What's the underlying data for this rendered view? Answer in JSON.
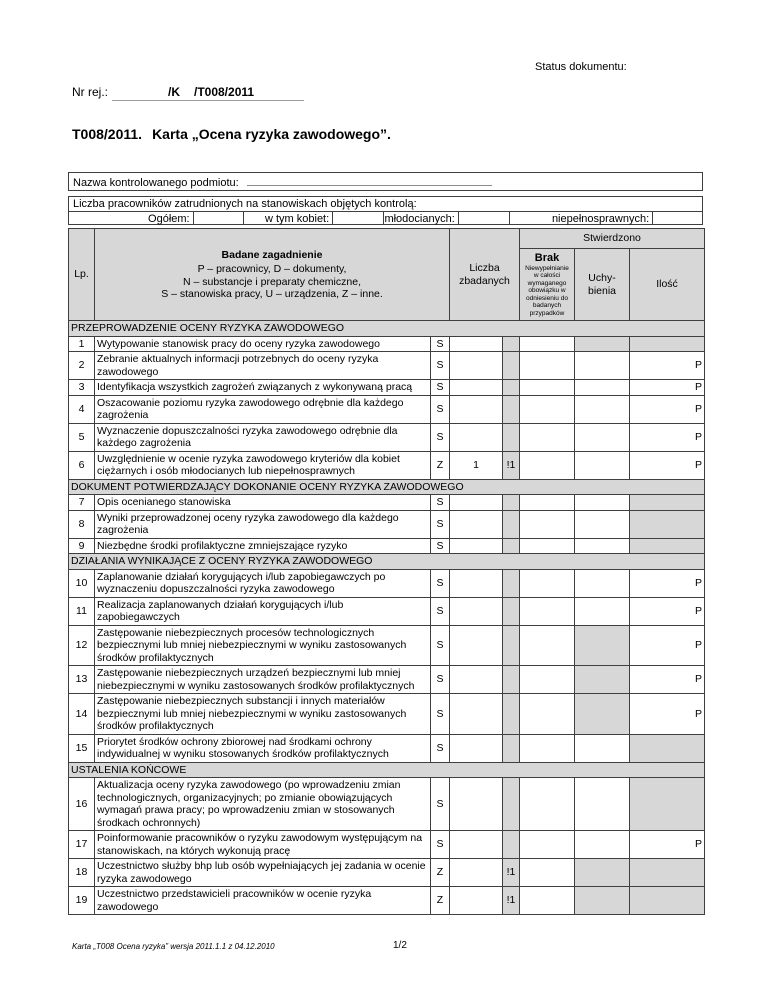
{
  "colors": {
    "cell_shade": "#d7d7d7",
    "border": "#3f3f3f"
  },
  "document": {
    "status_label": "Status dokumentu:",
    "reg": {
      "label": "Nr rej.:",
      "part1": "/K",
      "part2": "/T008/2011"
    },
    "title_code": "T008/2011.",
    "title_text": "Karta „Ocena ryzyka zawodowego”.",
    "footer": {
      "left": "Karta „T008 Ocena ryzyka” wersja 2011.1.1 z 04.12.2010",
      "page": "1/2"
    }
  },
  "form": {
    "subject_label": "Nazwa kontrolowanego podmiotu:",
    "subject_value": "",
    "employees_label": "Liczba pracowników zatrudnionych na stanowiskach objętych kontrolą:",
    "fields": [
      {
        "label": "Ogółem:",
        "value": ""
      },
      {
        "label": "w tym kobiet:",
        "value": ""
      },
      {
        "label": "młodocianych:",
        "value": ""
      },
      {
        "label": "niepełnosprawnych:",
        "value": ""
      }
    ]
  },
  "table": {
    "header": {
      "lp": "Lp.",
      "topic_title": "Badane zagadnienie",
      "legend": [
        "P – pracownicy, D – dokumenty,",
        "N – substancje i preparaty chemiczne,",
        "S – stanowiska pracy, U – urządzenia, Z – inne."
      ],
      "examined": "Liczba zbadanych",
      "found": "Stwierdzono",
      "brak_title": "Brak",
      "brak_note": "Niewypełnianie w całości wymaganego obowiązku w odniesieniu do badanych przypadków",
      "uchybienia": "Uchy-bienia",
      "ilosc": "Ilość"
    },
    "sections": [
      {
        "title": "PRZEPROWADZENIE OCENY RYZYKA ZAWODOWEGO",
        "rows": [
          {
            "no": "1",
            "text": "Wytypowanie stanowisk pracy do oceny ryzyka zawodowego",
            "code": "S",
            "examined": "",
            "mark": "",
            "brak": "",
            "uchybienia": "",
            "ilosc": "",
            "shade_uchybienia": true,
            "shade_ilosc": true
          },
          {
            "no": "2",
            "text": "Zebranie aktualnych informacji potrzebnych do oceny ryzyka zawodowego",
            "code": "S",
            "examined": "",
            "mark": "",
            "brak": "",
            "uchybienia": "",
            "ilosc": "P",
            "shade_uchybienia": false,
            "shade_ilosc": false
          },
          {
            "no": "3",
            "text": "Identyfikacja wszystkich zagrożeń związanych z wykonywaną pracą",
            "code": "S",
            "examined": "",
            "mark": "",
            "brak": "",
            "uchybienia": "",
            "ilosc": "P",
            "shade_uchybienia": false,
            "shade_ilosc": false
          },
          {
            "no": "4",
            "text": "Oszacowanie poziomu ryzyka zawodowego odrębnie dla każdego zagrożenia",
            "code": "S",
            "examined": "",
            "mark": "",
            "brak": "",
            "uchybienia": "",
            "ilosc": "P",
            "shade_uchybienia": false,
            "shade_ilosc": false
          },
          {
            "no": "5",
            "text": "Wyznaczenie dopuszczalności ryzyka zawodowego odrębnie dla każdego zagrożenia",
            "code": "S",
            "examined": "",
            "mark": "",
            "brak": "",
            "uchybienia": "",
            "ilosc": "P",
            "shade_uchybienia": false,
            "shade_ilosc": false
          },
          {
            "no": "6",
            "text": "Uwzględnienie w ocenie ryzyka zawodowego kryteriów dla kobiet ciężarnych i osób młodocianych lub niepełnosprawnych",
            "code": "Z",
            "examined": "1",
            "mark": "!1",
            "brak": "",
            "uchybienia": "",
            "ilosc": "P",
            "shade_uchybienia": false,
            "shade_ilosc": false
          }
        ]
      },
      {
        "title": "DOKUMENT POTWIERDZAJĄCY DOKONANIE OCENY RYZYKA ZAWODOWEGO",
        "rows": [
          {
            "no": "7",
            "text": "Opis ocenianego stanowiska",
            "code": "S",
            "examined": "",
            "mark": "",
            "brak": "",
            "uchybienia": "",
            "ilosc": "",
            "shade_uchybienia": false,
            "shade_ilosc": true
          },
          {
            "no": "8",
            "text": "Wyniki przeprowadzonej oceny ryzyka zawodowego dla każdego zagrożenia",
            "code": "S",
            "examined": "",
            "mark": "",
            "brak": "",
            "uchybienia": "",
            "ilosc": "",
            "shade_uchybienia": false,
            "shade_ilosc": true
          },
          {
            "no": "9",
            "text": "Niezbędne środki profilaktyczne zmniejszające ryzyko",
            "code": "S",
            "examined": "",
            "mark": "",
            "brak": "",
            "uchybienia": "",
            "ilosc": "",
            "shade_uchybienia": false,
            "shade_ilosc": true
          }
        ]
      },
      {
        "title": "DZIAŁANIA WYNIKAJĄCE Z OCENY RYZYKA ZAWODOWEGO",
        "rows": [
          {
            "no": "10",
            "text": "Zaplanowanie działań korygujących i/lub zapobiegawczych po wyznaczeniu dopuszczalności ryzyka zawodowego",
            "code": "S",
            "examined": "",
            "mark": "",
            "brak": "",
            "uchybienia": "",
            "ilosc": "P",
            "shade_uchybienia": false,
            "shade_ilosc": false
          },
          {
            "no": "11",
            "text": "Realizacja zaplanowanych działań korygujących i/lub zapobiegawczych",
            "code": "S",
            "examined": "",
            "mark": "",
            "brak": "",
            "uchybienia": "",
            "ilosc": "P",
            "shade_uchybienia": false,
            "shade_ilosc": false
          },
          {
            "no": "12",
            "text": "Zastępowanie niebezpiecznych procesów technologicznych bezpiecznymi lub mniej niebezpiecznymi w wyniku zastosowanych środków profilaktycznych",
            "code": "S",
            "examined": "",
            "mark": "",
            "brak": "",
            "uchybienia": "",
            "ilosc": "P",
            "shade_uchybienia": true,
            "shade_ilosc": false
          },
          {
            "no": "13",
            "text": "Zastępowanie niebezpiecznych urządzeń bezpiecznymi lub mniej niebezpiecznymi w wyniku zastosowanych środków profilaktycznych",
            "code": "S",
            "examined": "",
            "mark": "",
            "brak": "",
            "uchybienia": "",
            "ilosc": "P",
            "shade_uchybienia": true,
            "shade_ilosc": false
          },
          {
            "no": "14",
            "text": "Zastępowanie niebezpiecznych substancji i innych materiałów bezpiecznymi lub mniej niebezpiecznymi w wyniku zastosowanych środków profilaktycznych",
            "code": "S",
            "examined": "",
            "mark": "",
            "brak": "",
            "uchybienia": "",
            "ilosc": "P",
            "shade_uchybienia": true,
            "shade_ilosc": false
          },
          {
            "no": "15",
            "text": "Priorytet środków ochrony zbiorowej nad środkami ochrony indywidualnej w wyniku stosowanych środków profilaktycznych",
            "code": "S",
            "examined": "",
            "mark": "",
            "brak": "",
            "uchybienia": "",
            "ilosc": "",
            "shade_uchybienia": false,
            "shade_ilosc": true
          }
        ]
      },
      {
        "title": "USTALENIA KOŃCOWE",
        "rows": [
          {
            "no": "16",
            "text": "Aktualizacja oceny ryzyka zawodowego (po wprowadzeniu zmian technologicznych, organizacyjnych; po zmianie obowiązujących wymagań prawa pracy; po wprowadzeniu zmian w stosowanych środkach ochronnych)",
            "code": "S",
            "examined": "",
            "mark": "",
            "brak": "",
            "uchybienia": "",
            "ilosc": "",
            "shade_uchybienia": false,
            "shade_ilosc": true
          },
          {
            "no": "17",
            "text": "Poinformowanie pracowników o ryzyku zawodowym występującym na stanowiskach, na których wykonują pracę",
            "code": "S",
            "examined": "",
            "mark": "",
            "brak": "",
            "uchybienia": "",
            "ilosc": "P",
            "shade_uchybienia": false,
            "shade_ilosc": false
          },
          {
            "no": "18",
            "text": "Uczestnictwo służby bhp lub osób wypełniających jej zadania w ocenie ryzyka zawodowego",
            "code": "Z",
            "examined": "",
            "mark": "!1",
            "brak": "",
            "uchybienia": "",
            "ilosc": "",
            "shade_uchybienia": true,
            "shade_ilosc": true
          },
          {
            "no": "19",
            "text": "Uczestnictwo przedstawicieli pracowników w ocenie ryzyka zawodowego",
            "code": "Z",
            "examined": "",
            "mark": "!1",
            "brak": "",
            "uchybienia": "",
            "ilosc": "",
            "shade_uchybienia": true,
            "shade_ilosc": true
          }
        ]
      }
    ]
  }
}
